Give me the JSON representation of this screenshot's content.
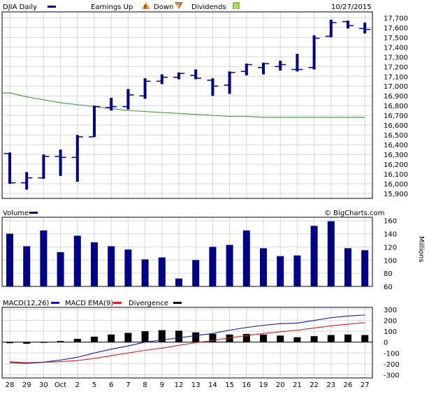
{
  "header": {
    "symbol_label": "DJIA Daily",
    "earnings_up_label": "Earnings Up",
    "earnings_up_marker": "E",
    "down_label": "Down",
    "down_marker": "E",
    "dividends_label": "Dividends",
    "dividends_marker": "D",
    "date": "10/27/2015"
  },
  "colors": {
    "price": "#00008b",
    "ma": "#4f9f4f",
    "volume": "#00008b",
    "macd": "#1515a8",
    "ema": "#d81c1c",
    "divergence": "#000000",
    "grid": "#d6d6d6",
    "border": "#000000",
    "earnings_up": "#ff9a33",
    "earnings_down": "#b8762f",
    "dividends": "#8dc63f"
  },
  "x_axis": {
    "labels": [
      "28",
      "29",
      "30",
      "Oct",
      "2",
      "5",
      "6",
      "7",
      "8",
      "9",
      "12",
      "13",
      "14",
      "15",
      "16",
      "19",
      "20",
      "21",
      "22",
      "23",
      "26",
      "27"
    ]
  },
  "chart_data": [
    {
      "type": "ohlc",
      "title": "DJIA Daily",
      "categories": [
        "Sep 28",
        "Sep 29",
        "Sep 30",
        "Oct 1",
        "Oct 2",
        "Oct 5",
        "Oct 6",
        "Oct 7",
        "Oct 8",
        "Oct 9",
        "Oct 12",
        "Oct 13",
        "Oct 14",
        "Oct 15",
        "Oct 16",
        "Oct 19",
        "Oct 20",
        "Oct 21",
        "Oct 22",
        "Oct 23",
        "Oct 26",
        "Oct 27"
      ],
      "open": [
        16310,
        16010,
        16060,
        16280,
        16270,
        16480,
        16780,
        16790,
        16900,
        17050,
        17090,
        17110,
        17060,
        17010,
        17150,
        17190,
        17200,
        17170,
        17190,
        17510,
        17660,
        17590
      ],
      "high": [
        16320,
        16120,
        16300,
        16350,
        16500,
        16800,
        16880,
        16970,
        17080,
        17120,
        17140,
        17170,
        17080,
        17150,
        17230,
        17240,
        17260,
        17330,
        17520,
        17680,
        17670,
        17650
      ],
      "low": [
        16000,
        15940,
        16050,
        16080,
        16020,
        16480,
        16750,
        16760,
        16870,
        17020,
        17070,
        17070,
        16900,
        16920,
        17110,
        17120,
        17160,
        17150,
        17170,
        17500,
        17590,
        17540
      ],
      "close": [
        16010,
        16060,
        16280,
        16270,
        16480,
        16790,
        16790,
        16910,
        17050,
        17090,
        17130,
        17080,
        17000,
        17140,
        17220,
        17230,
        17220,
        17170,
        17490,
        17650,
        17620,
        17580
      ],
      "moving_average": [
        16930,
        16890,
        16860,
        16830,
        16810,
        16790,
        16770,
        16750,
        16740,
        16730,
        16720,
        16710,
        16700,
        16690,
        16690,
        16680,
        16680,
        16680,
        16680,
        16680,
        16680,
        16680
      ],
      "ylim": [
        15850,
        17760
      ],
      "ticks": [
        15900,
        16000,
        16100,
        16200,
        16300,
        16400,
        16500,
        16600,
        16700,
        16800,
        16900,
        17000,
        17100,
        17200,
        17300,
        17400,
        17500,
        17600,
        17700
      ]
    },
    {
      "type": "bar",
      "title": "Volume",
      "ylabel": "Millions",
      "values": [
        140,
        121,
        145,
        112,
        137,
        127,
        121,
        116,
        101,
        104,
        72,
        100,
        120,
        123,
        145,
        118,
        106,
        107,
        152,
        159,
        118,
        115
      ],
      "ylim": [
        60,
        165
      ],
      "ticks": [
        60,
        80,
        100,
        120,
        140,
        160
      ],
      "watermark": "© BigCharts.com"
    },
    {
      "type": "line",
      "title": "MACD",
      "series": [
        {
          "name": "MACD(12,26)",
          "values": [
            -190,
            -195,
            -185,
            -165,
            -140,
            -100,
            -65,
            -35,
            0,
            20,
            40,
            60,
            80,
            110,
            135,
            155,
            170,
            175,
            200,
            225,
            240,
            250
          ]
        },
        {
          "name": "MACD EMA(9)",
          "values": [
            -180,
            -190,
            -185,
            -180,
            -170,
            -150,
            -125,
            -100,
            -75,
            -55,
            -30,
            -5,
            15,
            40,
            60,
            80,
            95,
            110,
            130,
            150,
            165,
            180
          ]
        },
        {
          "name": "Divergence",
          "values": [
            -10,
            -15,
            0,
            10,
            30,
            50,
            70,
            85,
            100,
            110,
            105,
            90,
            75,
            70,
            75,
            70,
            60,
            45,
            55,
            65,
            70,
            65
          ]
        }
      ],
      "ylim": [
        -330,
        320
      ],
      "ticks": [
        -300,
        -200,
        -100,
        0,
        100,
        200,
        300
      ]
    }
  ]
}
